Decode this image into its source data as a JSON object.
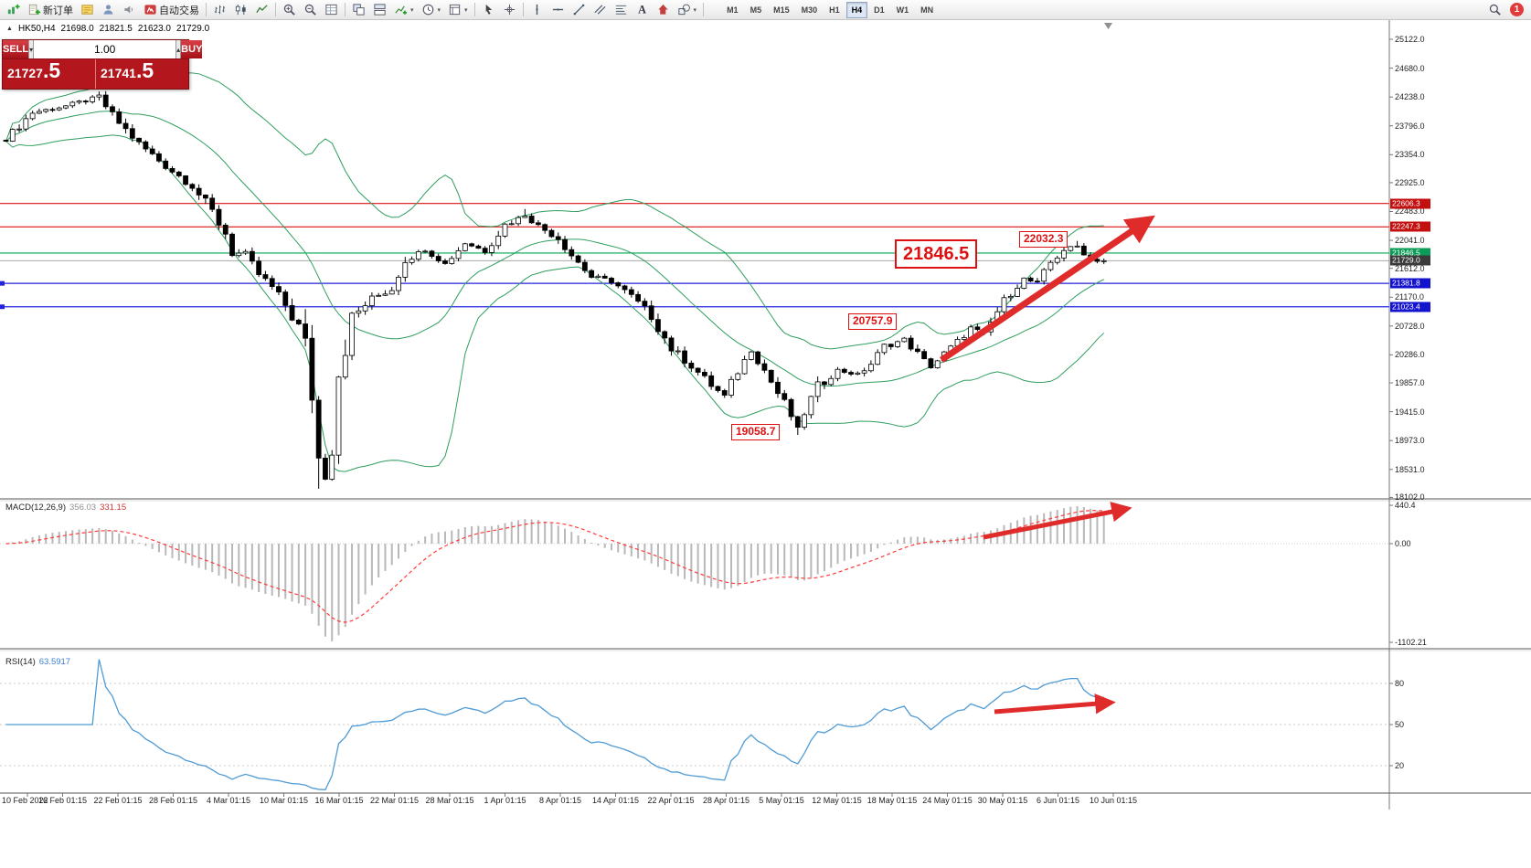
{
  "toolbar": {
    "items": [
      {
        "name": "new-chart-button",
        "icon": "newchart"
      },
      {
        "name": "new-order-button",
        "icon": "neworder",
        "label": "新订单"
      },
      {
        "name": "market-watch-button",
        "icon": "marketwatch"
      },
      {
        "name": "navigator-button",
        "icon": "navigator"
      },
      {
        "name": "sound-alert-button",
        "icon": "sound"
      },
      {
        "name": "autotrading-button",
        "icon": "autotrade",
        "label": "自动交易"
      },
      {
        "sep": true
      },
      {
        "name": "bar-chart-button",
        "icon": "bars"
      },
      {
        "name": "candlestick-chart-button",
        "icon": "candles"
      },
      {
        "name": "line-chart-button",
        "icon": "linechart"
      },
      {
        "sep": true
      },
      {
        "name": "zoom-in-button",
        "icon": "zoomin"
      },
      {
        "name": "zoom-out-button",
        "icon": "zoomout"
      },
      {
        "name": "tile-windows-button",
        "icon": "grid"
      },
      {
        "sep": true
      },
      {
        "name": "cascade-windows-button",
        "icon": "tile1"
      },
      {
        "name": "arrange-windows-button",
        "icon": "tile2"
      },
      {
        "name": "indicators-button",
        "icon": "indicators",
        "dropdown": true
      },
      {
        "name": "periods-button",
        "icon": "clock",
        "dropdown": true
      },
      {
        "name": "templates-button",
        "icon": "template",
        "dropdown": true
      },
      {
        "sep": true
      },
      {
        "name": "cursor-tool-button",
        "icon": "cursor"
      },
      {
        "name": "crosshair-tool-button",
        "icon": "crosshair"
      },
      {
        "sep": true
      },
      {
        "name": "vertical-line-tool",
        "icon": "vline"
      },
      {
        "name": "horizontal-line-tool",
        "icon": "hline"
      },
      {
        "name": "trendline-tool",
        "icon": "trendline"
      },
      {
        "name": "channel-tool",
        "icon": "channel"
      },
      {
        "name": "fibonacci-tool",
        "icon": "fibo"
      },
      {
        "name": "text-tool",
        "icon": "text"
      },
      {
        "name": "arrow-tool",
        "icon": "arrows"
      },
      {
        "name": "shapes-tool",
        "icon": "shapes",
        "dropdown": true
      },
      {
        "sep": true
      }
    ],
    "timeframes": [
      "M1",
      "M5",
      "M15",
      "M30",
      "H1",
      "H4",
      "D1",
      "W1",
      "MN"
    ],
    "active_timeframe": "H4",
    "badge": "1"
  },
  "chart_header": {
    "symbol_period": "HK50,H4",
    "open": "21698.0",
    "high": "21821.5",
    "low": "21623.0",
    "close": "21729.0"
  },
  "trade_panel": {
    "sell_label": "SELL",
    "buy_label": "BUY",
    "volume": "1.00",
    "sell_price_main": "21727",
    "sell_price_frac": ".5",
    "buy_price_main": "21741",
    "buy_price_frac": ".5"
  },
  "annotations": {
    "big_price": "21846.5",
    "swing_high": "22032.3",
    "swing_mid": "20757.9",
    "swing_low": "19058.7"
  },
  "macd": {
    "label": "MACD(12,26,9)",
    "value1": "356.03",
    "value2": "331.15",
    "axis": [
      "440.4",
      "0.00",
      "-1102.21"
    ]
  },
  "rsi": {
    "label": "RSI(14)",
    "value": "63.5917",
    "axis": [
      "80",
      "50",
      "20"
    ]
  },
  "price_axis": {
    "scale": [
      "25122.0",
      "24680.0",
      "24238.0",
      "23796.0",
      "23354.0",
      "22925.0",
      "22483.0",
      "22041.0",
      "21612.0",
      "21170.0",
      "20728.0",
      "20286.0",
      "19857.0",
      "19415.0",
      "18973.0",
      "18531.0",
      "18102.0"
    ]
  },
  "time_axis": [
    "10 Feb 2022",
    "16 Feb 01:15",
    "22 Feb 01:15",
    "28 Feb 01:15",
    "4 Mar 01:15",
    "10 Mar 01:15",
    "16 Mar 01:15",
    "22 Mar 01:15",
    "28 Mar 01:15",
    "1 Apr 01:15",
    "8 Apr 01:15",
    "14 Apr 01:15",
    "22 Apr 01:15",
    "28 Apr 01:15",
    "5 May 01:15",
    "12 May 01:15",
    "18 May 01:15",
    "24 May 01:15",
    "30 May 01:15",
    "6 Jun 01:15",
    "10 Jun 01:15"
  ],
  "chart_data": {
    "type": "candlestick",
    "symbol": "HK50",
    "timeframe": "H4",
    "bar_count": 166,
    "price_range": [
      18102,
      25122
    ],
    "keyframes": [
      [
        0,
        23600
      ],
      [
        4,
        24000
      ],
      [
        9,
        24100
      ],
      [
        14,
        24240
      ],
      [
        16,
        23950
      ],
      [
        20,
        23520
      ],
      [
        24,
        23180
      ],
      [
        28,
        22880
      ],
      [
        31,
        22480
      ],
      [
        33,
        22150
      ],
      [
        34,
        21850
      ],
      [
        36,
        21820
      ],
      [
        38,
        21520
      ],
      [
        40,
        21320
      ],
      [
        42,
        21050
      ],
      [
        44,
        20700
      ],
      [
        45,
        20400
      ],
      [
        46,
        19700
      ],
      [
        47,
        18700
      ],
      [
        48,
        18420
      ],
      [
        49,
        18900
      ],
      [
        50,
        20050
      ],
      [
        52,
        20850
      ],
      [
        55,
        21150
      ],
      [
        58,
        21300
      ],
      [
        60,
        21750
      ],
      [
        63,
        21900
      ],
      [
        66,
        21680
      ],
      [
        69,
        22000
      ],
      [
        72,
        21880
      ],
      [
        75,
        22280
      ],
      [
        78,
        22430
      ],
      [
        80,
        22260
      ],
      [
        83,
        22080
      ],
      [
        85,
        21820
      ],
      [
        88,
        21480
      ],
      [
        91,
        21420
      ],
      [
        94,
        21180
      ],
      [
        97,
        20880
      ],
      [
        100,
        20380
      ],
      [
        103,
        20120
      ],
      [
        106,
        19820
      ],
      [
        108,
        19650
      ],
      [
        110,
        20050
      ],
      [
        112,
        20350
      ],
      [
        114,
        20050
      ],
      [
        116,
        19700
      ],
      [
        118,
        19350
      ],
      [
        119,
        19150
      ],
      [
        120,
        19400
      ],
      [
        122,
        19800
      ],
      [
        125,
        20050
      ],
      [
        128,
        19980
      ],
      [
        130,
        20150
      ],
      [
        132,
        20420
      ],
      [
        135,
        20520
      ],
      [
        137,
        20300
      ],
      [
        139,
        20100
      ],
      [
        141,
        20300
      ],
      [
        143,
        20480
      ],
      [
        145,
        20700
      ],
      [
        147,
        20600
      ],
      [
        149,
        20950
      ],
      [
        151,
        21250
      ],
      [
        153,
        21450
      ],
      [
        155,
        21380
      ],
      [
        157,
        21700
      ],
      [
        159,
        21900
      ],
      [
        161,
        21950
      ],
      [
        163,
        21750
      ],
      [
        165,
        21729
      ]
    ],
    "forced_points": {
      "crash_low_bar": 47,
      "crash_low": 18235.0,
      "swing_low_bar": 119,
      "swing_low": 19058.7,
      "swing_high_bar": 161,
      "swing_high": 22032.3,
      "april_high_bar": 78,
      "april_high": 22520.0,
      "last_close": 21729.0
    },
    "levels": [
      {
        "price": 22606.3,
        "label": "22606.3",
        "bg": "#c40f0f",
        "line": "#dd1111"
      },
      {
        "price": 22247.3,
        "label": "22247.3",
        "bg": "#c40f0f",
        "line": "#dd1111"
      },
      {
        "price": 21846.5,
        "label": "21846.5",
        "bg": "#0b9b57",
        "line": "#00a651"
      },
      {
        "price": 21729.0,
        "label": "21729.0",
        "bg": "#3a3a3a",
        "line": "#a8a8a8",
        "current": true
      },
      {
        "price": 21381.8,
        "label": "21381.8",
        "bg": "#1414cf",
        "line": "#2222dd",
        "handle": true
      },
      {
        "price": 21023.4,
        "label": "21023.4",
        "bg": "#1414cf",
        "line": "#2222dd",
        "handle": true
      }
    ],
    "indicators": {
      "bollinger": {
        "period": 20,
        "deviation": 2,
        "color": "#2f9e5f"
      },
      "macd": {
        "fast": 12,
        "slow": 26,
        "signal": 9,
        "main_value": 356.03,
        "signal_value": 331.15
      },
      "rsi": {
        "period": 14,
        "value": 63.5917
      }
    },
    "trend_arrows": "up"
  }
}
